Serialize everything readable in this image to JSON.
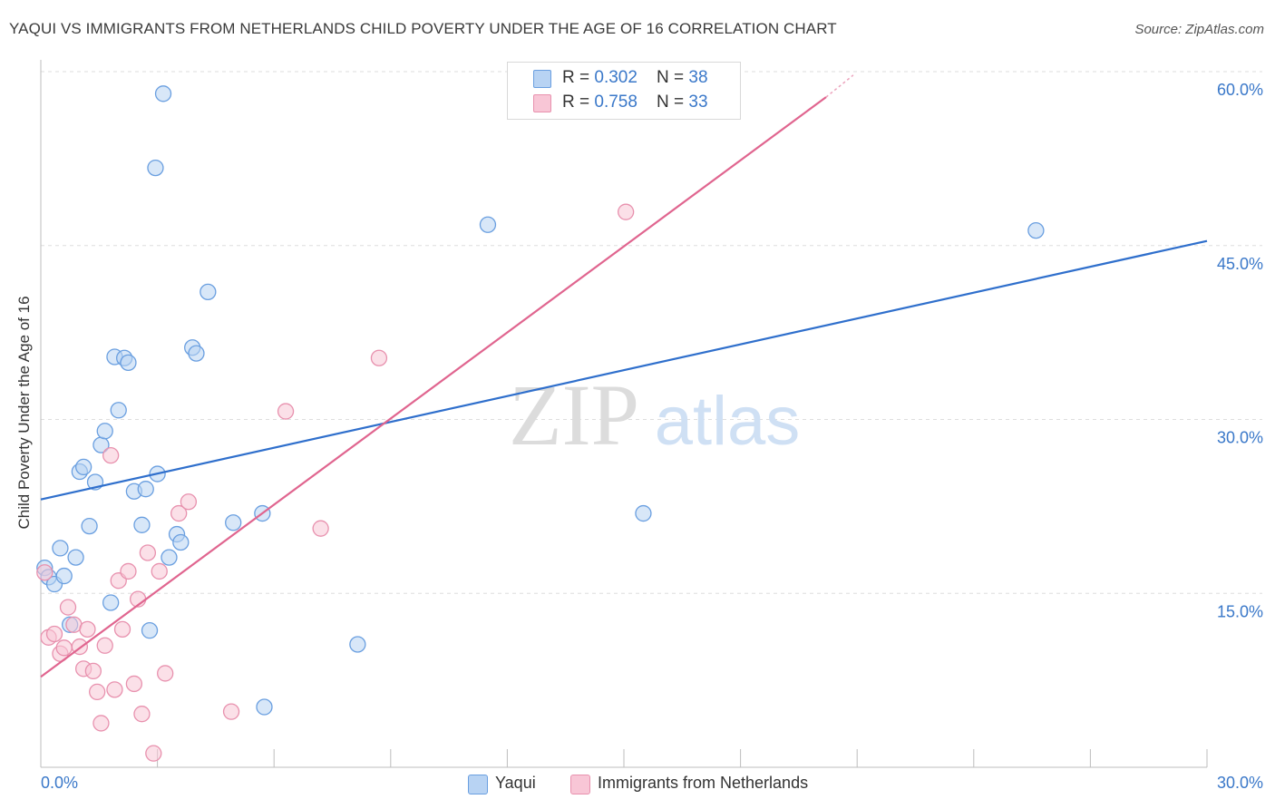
{
  "header": {
    "title": "YAQUI VS IMMIGRANTS FROM NETHERLANDS CHILD POVERTY UNDER THE AGE OF 16 CORRELATION CHART",
    "source": "Source: ZipAtlas.com"
  },
  "watermark": {
    "zip": "ZIP",
    "atlas": "atlas"
  },
  "colors": {
    "blue_fill": "#b8d3f3",
    "blue_stroke": "#6a9fe0",
    "blue_line": "#2f6fcc",
    "pink_fill": "#f8c6d6",
    "pink_stroke": "#e891ae",
    "pink_line": "#e0658f",
    "axis_text": "#3a78c9"
  },
  "legend_top": [
    {
      "r_label": "R = ",
      "r_value": "0.302",
      "n_label": "N = ",
      "n_value": "38"
    },
    {
      "r_label": "R = ",
      "r_value": "0.758",
      "n_label": "N = ",
      "n_value": "33"
    }
  ],
  "chart_data": {
    "type": "scatter",
    "title": "YAQUI VS IMMIGRANTS FROM NETHERLANDS CHILD POVERTY UNDER THE AGE OF 16 CORRELATION CHART",
    "xlabel": "",
    "ylabel": "Child Poverty Under the Age of 16",
    "xlim": [
      0,
      30
    ],
    "ylim": [
      0,
      60
    ],
    "x_tick_labels": [
      {
        "value": 0,
        "label": "0.0%"
      },
      {
        "value": 30,
        "label": "30.0%"
      }
    ],
    "y_tick_labels": [
      {
        "value": 15,
        "label": "15.0%"
      },
      {
        "value": 30,
        "label": "30.0%"
      },
      {
        "value": 45,
        "label": "45.0%"
      },
      {
        "value": 60,
        "label": "60.0%"
      }
    ],
    "grid": true,
    "legend_position": "top-center",
    "series": [
      {
        "name": "Yaqui",
        "r": 0.302,
        "n": 38,
        "trendline": {
          "x": [
            0,
            30
          ],
          "y": [
            23.1,
            45.4
          ]
        },
        "points": [
          [
            0.1,
            17.2
          ],
          [
            0.2,
            16.4
          ],
          [
            0.35,
            15.8
          ],
          [
            0.5,
            18.9
          ],
          [
            0.6,
            16.5
          ],
          [
            0.75,
            12.3
          ],
          [
            0.9,
            18.1
          ],
          [
            1.0,
            25.5
          ],
          [
            1.1,
            25.9
          ],
          [
            1.25,
            20.8
          ],
          [
            1.4,
            24.6
          ],
          [
            1.55,
            27.8
          ],
          [
            1.65,
            29.0
          ],
          [
            1.8,
            14.2
          ],
          [
            1.9,
            35.4
          ],
          [
            2.0,
            30.8
          ],
          [
            2.15,
            35.3
          ],
          [
            2.25,
            34.9
          ],
          [
            2.4,
            23.8
          ],
          [
            2.6,
            20.9
          ],
          [
            2.7,
            24.0
          ],
          [
            2.8,
            11.8
          ],
          [
            2.95,
            51.7
          ],
          [
            3.0,
            25.3
          ],
          [
            3.15,
            58.1
          ],
          [
            3.3,
            18.1
          ],
          [
            3.5,
            20.1
          ],
          [
            3.6,
            19.4
          ],
          [
            3.9,
            36.2
          ],
          [
            4.0,
            35.7
          ],
          [
            4.3,
            41.0
          ],
          [
            4.95,
            21.1
          ],
          [
            5.7,
            21.9
          ],
          [
            5.75,
            5.2
          ],
          [
            8.15,
            10.6
          ],
          [
            11.5,
            46.8
          ],
          [
            15.5,
            21.9
          ],
          [
            25.6,
            46.3
          ]
        ]
      },
      {
        "name": "Immigrants from Netherlands",
        "r": 0.758,
        "n": 33,
        "trendline": {
          "x": [
            0,
            20.2
          ],
          "y": [
            7.8,
            57.8
          ]
        },
        "trendline_dashed": {
          "x": [
            20.2,
            20.9
          ],
          "y": [
            57.8,
            59.7
          ]
        },
        "points": [
          [
            0.1,
            16.8
          ],
          [
            0.2,
            11.2
          ],
          [
            0.35,
            11.5
          ],
          [
            0.5,
            9.8
          ],
          [
            0.6,
            10.3
          ],
          [
            0.7,
            13.8
          ],
          [
            0.85,
            12.3
          ],
          [
            1.0,
            10.4
          ],
          [
            1.1,
            8.5
          ],
          [
            1.2,
            11.9
          ],
          [
            1.35,
            8.3
          ],
          [
            1.45,
            6.5
          ],
          [
            1.55,
            3.8
          ],
          [
            1.65,
            10.5
          ],
          [
            1.8,
            26.9
          ],
          [
            1.9,
            6.7
          ],
          [
            2.0,
            16.1
          ],
          [
            2.1,
            11.9
          ],
          [
            2.25,
            16.9
          ],
          [
            2.4,
            7.2
          ],
          [
            2.5,
            14.5
          ],
          [
            2.6,
            4.6
          ],
          [
            2.75,
            18.5
          ],
          [
            2.9,
            1.2
          ],
          [
            3.05,
            16.9
          ],
          [
            3.2,
            8.1
          ],
          [
            3.55,
            21.9
          ],
          [
            3.8,
            22.9
          ],
          [
            4.9,
            4.8
          ],
          [
            6.3,
            30.7
          ],
          [
            7.2,
            20.6
          ],
          [
            8.7,
            35.3
          ],
          [
            15.05,
            47.9
          ]
        ]
      }
    ]
  },
  "legend_bottom": [
    {
      "label": "Yaqui"
    },
    {
      "label": "Immigrants from Netherlands"
    }
  ]
}
